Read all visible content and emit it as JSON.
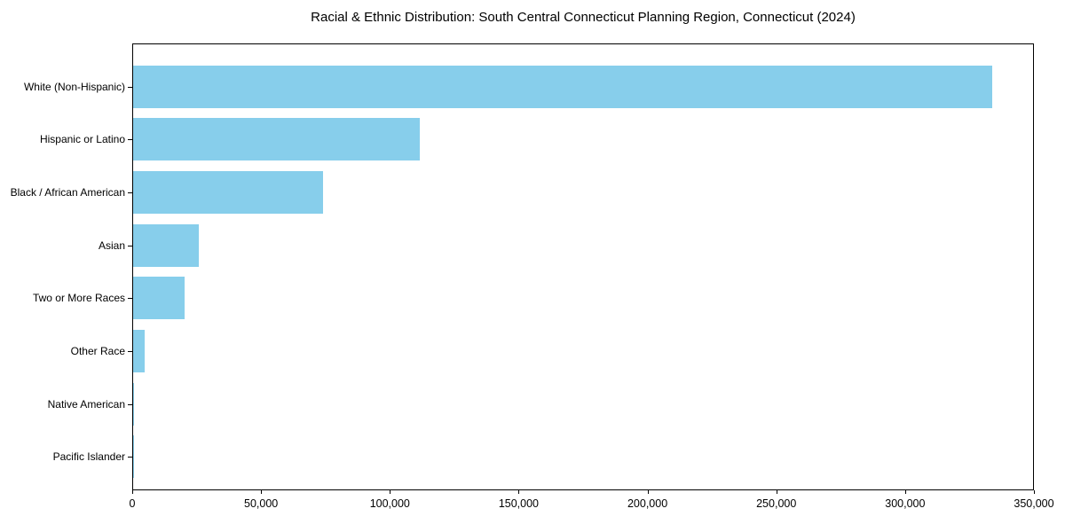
{
  "chart_data": {
    "type": "bar",
    "orientation": "horizontal",
    "title": "Racial & Ethnic Distribution: South Central Connecticut Planning Region, Connecticut (2024)",
    "categories": [
      "White (Non-Hispanic)",
      "Hispanic or Latino",
      "Black / African American",
      "Asian",
      "Two or More Races",
      "Other Race",
      "Native American",
      "Pacific Islander"
    ],
    "values": [
      333500,
      111400,
      73800,
      25600,
      20100,
      4400,
      400,
      100
    ],
    "xlabel": "",
    "ylabel": "",
    "xlim": [
      0,
      350000
    ],
    "xtick_values": [
      0,
      50000,
      100000,
      150000,
      200000,
      250000,
      300000,
      350000
    ],
    "xtick_labels": [
      "0",
      "50,000",
      "100,000",
      "150,000",
      "200,000",
      "250,000",
      "300,000",
      "350,000"
    ],
    "bar_color": "#87CEEB",
    "spine_color": "#000000",
    "grid": false,
    "legend": "none"
  }
}
